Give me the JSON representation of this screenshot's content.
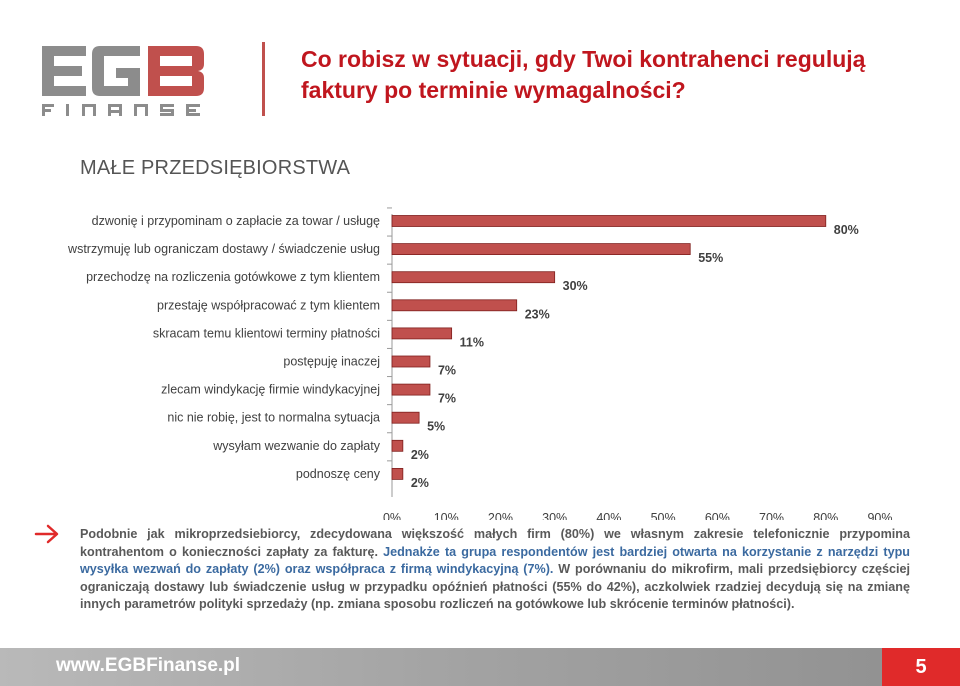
{
  "header": {
    "logo_text": "EGB FINANSE",
    "title_line1": "Co robisz w sytuacji, gdy Twoi kontrahenci regulują",
    "title_line2": "faktury po terminie wymagalności?"
  },
  "section_title": "MAŁE PRZEDSIĘBIORSTWA",
  "chart_data": {
    "type": "bar",
    "orientation": "horizontal",
    "categories": [
      "dzwonię i przypominam o zapłacie za towar / usługę",
      "wstrzymuję lub ograniczam dostawy / świadczenie usług",
      "przechodzę na rozliczenia gotówkowe z tym klientem",
      "przestaję współpracować z tym klientem",
      "skracam temu klientowi terminy płatności",
      "postępuję inaczej",
      "zlecam windykację firmie windykacyjnej",
      "nic nie robię, jest to normalna sytuacja",
      "wysyłam wezwanie do zapłaty",
      "podnoszę ceny"
    ],
    "values": [
      80,
      55,
      30,
      23,
      11,
      7,
      7,
      5,
      2,
      2
    ],
    "value_labels": [
      "80%",
      "55%",
      "30%",
      "23%",
      "11%",
      "7%",
      "7%",
      "5%",
      "2%",
      "2%"
    ],
    "xlim": [
      0,
      90
    ],
    "xticks": [
      "0%",
      "10%",
      "20%",
      "30%",
      "40%",
      "50%",
      "60%",
      "70%",
      "80%",
      "90%"
    ],
    "grid": false,
    "bar_color": "#c0504d",
    "bar_outline": "#7f1f1d"
  },
  "note": {
    "part1": "Podobnie jak mikroprzedsiebiorcy, zdecydowana większość małych firm (80%) we własnym zakresie telefonicznie przypomina kontrahentom o konieczności zapłaty za fakturę. ",
    "part2": "Jednakże ta grupa respondentów jest bardziej otwarta na korzystanie z narzędzi typu wysyłka wezwań do zapłaty (2%) oraz współpraca z firmą windykacyjną (7%).",
    "part3": " W porównaniu do mikrofirm, mali przedsiębiorcy częściej ograniczają dostawy lub świadczenie usług w przypadku opóźnień płatności (55% do 42%), aczkolwiek rzadziej decydują się na zmianę innych parametrów polityki sprzedaży (np. zmiana sposobu rozliczeń na gotówkowe lub skrócenie terminów płatności)."
  },
  "footer": {
    "url": "www.EGBFinanse.pl",
    "page_number": "5"
  },
  "colors": {
    "title": "#c0161e",
    "accent": "#e02a2a",
    "highlight_text": "#3b6aa0"
  }
}
